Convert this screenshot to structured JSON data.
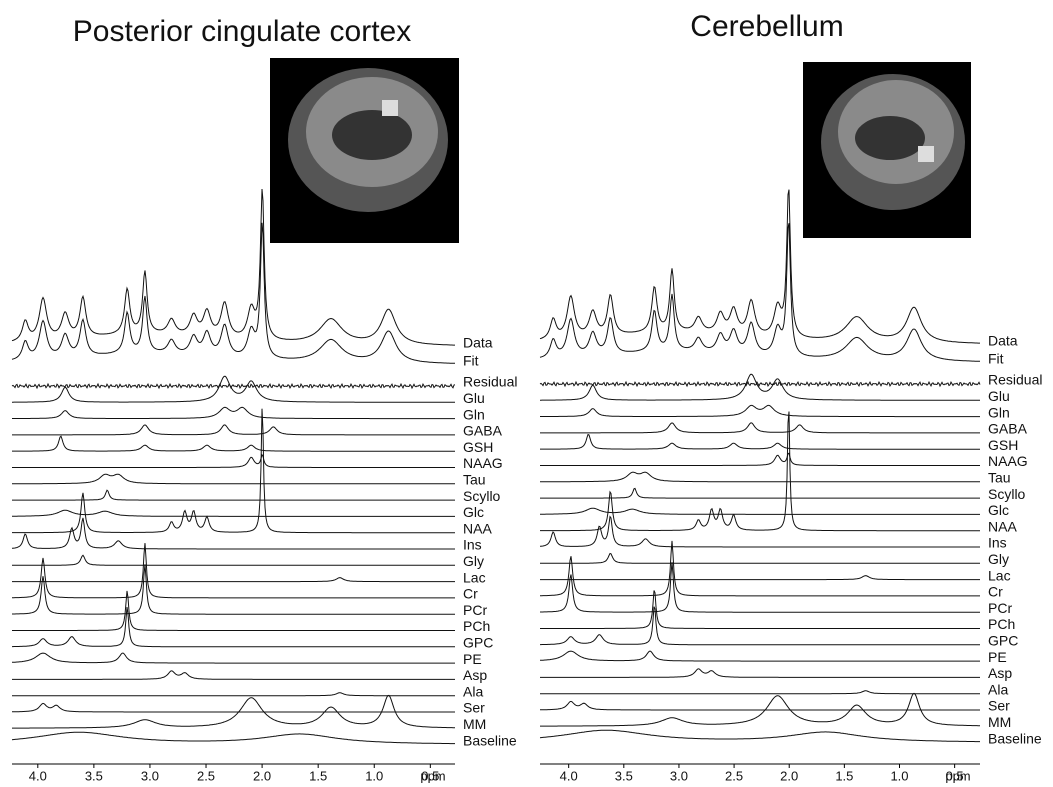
{
  "chart_data": [
    {
      "type": "spectrum",
      "title": "Posterior cingulate cortex",
      "xlabel": "ppm",
      "xlim": [
        4.23,
        0.28
      ],
      "xticks": [
        {
          "value": 4,
          "label": "4.0"
        },
        3.5,
        {
          "value": 3,
          "label": "3.0"
        },
        2.5,
        {
          "value": 2,
          "label": "2.0"
        },
        1.5,
        {
          "value": 1,
          "label": "1.0"
        },
        0.5
      ],
      "traces": [
        "Data",
        "Fit",
        "Residual",
        "Glu",
        "Gln",
        "GABA",
        "GSH",
        "NAAG",
        "Tau",
        "Scyllo",
        "Glc",
        "NAA",
        "Ins",
        "Gly",
        "Lac",
        "Cr",
        "PCr",
        "PCh",
        "GPC",
        "PE",
        "Asp",
        "Ala",
        "Ser",
        "MM",
        "Baseline"
      ]
    },
    {
      "type": "spectrum",
      "title": "Cerebellum",
      "xlabel": "ppm",
      "xlim": [
        4.26,
        0.27
      ],
      "xticks": [
        {
          "value": 4,
          "label": "4.0"
        },
        3.5,
        {
          "value": 3,
          "label": "3.0"
        },
        2.5,
        {
          "value": 2,
          "label": "2.0"
        },
        1.5,
        {
          "value": 1,
          "label": "1.0"
        },
        0.5
      ],
      "traces": [
        "Data",
        "Fit",
        "Residual",
        "Glu",
        "Gln",
        "GABA",
        "GSH",
        "NAAG",
        "Tau",
        "Scyllo",
        "Glc",
        "NAA",
        "Ins",
        "Gly",
        "Lac",
        "Cr",
        "PCr",
        "PCh",
        "GPC",
        "PE",
        "Asp",
        "Ala",
        "Ser",
        "MM",
        "Baseline"
      ]
    }
  ]
}
